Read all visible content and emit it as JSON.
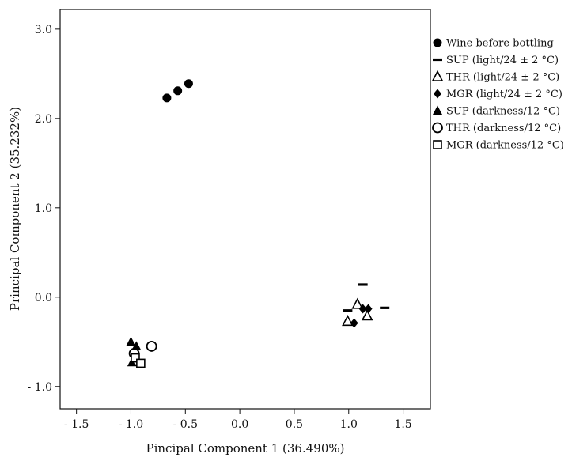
{
  "chart_data": {
    "type": "scatter",
    "title": "",
    "xlabel": "Pincipal Component 1 (36.490%)",
    "ylabel": "Principal Component 2 (35.232%)",
    "xlim": [
      -1.65,
      1.75
    ],
    "ylim": [
      -1.25,
      3.22
    ],
    "xticks": [
      -1.5,
      -1.0,
      -0.5,
      0.0,
      0.5,
      1.0,
      1.5
    ],
    "xtick_labels": [
      "- 1.5",
      "- 1.0",
      "- 0.5",
      "0.0",
      "0.5",
      "1.0",
      "1.5"
    ],
    "yticks": [
      -1.0,
      0.0,
      1.0,
      2.0,
      3.0
    ],
    "ytick_labels": [
      "- 1.0",
      "0.0",
      "1.0",
      "2.0",
      "3.0"
    ],
    "grid": false,
    "legend_position": "outside-right-top",
    "series": [
      {
        "name": "Wine before bottling",
        "marker": "filled-circle",
        "points": [
          [
            -0.67,
            2.23
          ],
          [
            -0.57,
            2.31
          ],
          [
            -0.47,
            2.39
          ]
        ]
      },
      {
        "name": "SUP (light/24 ± 2 °C)",
        "marker": "dash",
        "points": [
          [
            1.13,
            0.14
          ],
          [
            0.99,
            -0.15
          ],
          [
            1.33,
            -0.12
          ]
        ]
      },
      {
        "name": "THR (light/24 ± 2 °C)",
        "marker": "open-triangle",
        "points": [
          [
            1.08,
            -0.08
          ],
          [
            0.99,
            -0.27
          ],
          [
            1.17,
            -0.21
          ]
        ]
      },
      {
        "name": "MGR (light/24 ± 2 °C)",
        "marker": "filled-diamond",
        "points": [
          [
            1.13,
            -0.13
          ],
          [
            1.18,
            -0.13
          ],
          [
            1.05,
            -0.29
          ]
        ]
      },
      {
        "name": "SUP (darkness/12 °C)",
        "marker": "filled-triangle",
        "points": [
          [
            -1.0,
            -0.5
          ],
          [
            -0.95,
            -0.55
          ],
          [
            -0.99,
            -0.73
          ]
        ]
      },
      {
        "name": "THR (darkness/12 °C)",
        "marker": "open-circle",
        "points": [
          [
            -0.81,
            -0.55
          ],
          [
            -0.97,
            -0.63
          ]
        ]
      },
      {
        "name": "MGR (darkness/12 °C)",
        "marker": "open-square",
        "points": [
          [
            -0.96,
            -0.68
          ],
          [
            -0.91,
            -0.74
          ]
        ]
      }
    ]
  }
}
